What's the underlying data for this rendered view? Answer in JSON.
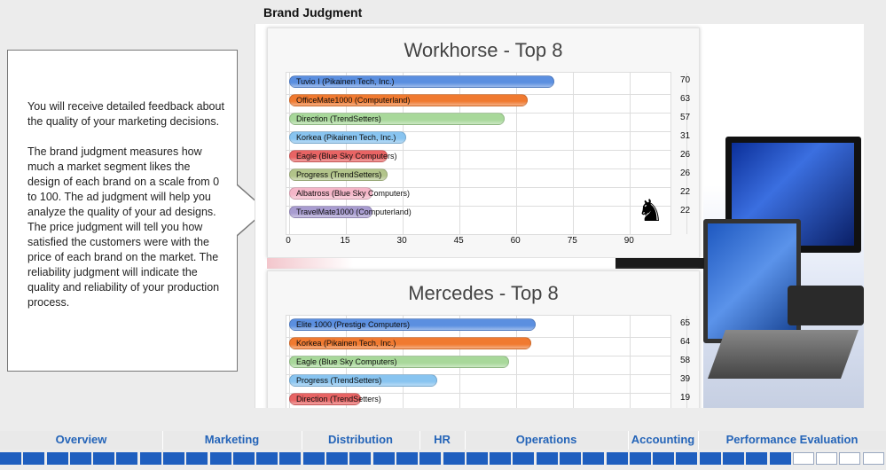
{
  "page": {
    "title": "Brand Judgment"
  },
  "info": {
    "paragraph1": "You will receive detailed feedback about the quality of your marketing decisions.",
    "paragraph2": "The brand judgment measures how much a market segment likes the design of each brand on a scale from 0 to 100. The ad judgment will help you analyze the quality of your ad designs. The price judgment will tell you how satisfied the customers were with the price of each brand on the market. The reliability judgment will indicate the quality and reliability of your production process."
  },
  "chart_data": [
    {
      "type": "bar",
      "orientation": "horizontal",
      "title": "Workhorse - Top 8",
      "categories": [
        "Tuvio I (Pikainen Tech, Inc.)",
        "OfficeMate1000 (Computerland)",
        "Direction (TrendSetters)",
        "Korkea (Pikainen Tech, Inc.)",
        "Eagle (Blue Sky Computers)",
        "Progress (TrendSetters)",
        "Albatross (Blue Sky Computers)",
        "TravelMate1000 (Computerland)"
      ],
      "values": [
        70,
        63,
        57,
        31,
        26,
        26,
        22,
        22
      ],
      "colors": [
        "#5b8fe0",
        "#f07a30",
        "#a8d89a",
        "#88c4f0",
        "#e86464",
        "#b2c48a",
        "#f4b6c8",
        "#a89cd0"
      ],
      "xlim": [
        0,
        100
      ],
      "xticks": [
        0,
        15,
        30,
        45,
        60,
        75,
        90
      ],
      "icon": "knight-icon"
    },
    {
      "type": "bar",
      "orientation": "horizontal",
      "title": "Mercedes - Top 8",
      "categories": [
        "Elite 1000 (Prestige Computers)",
        "Korkea (Pikainen Tech, Inc.)",
        "Eagle (Blue Sky Computers)",
        "Progress (TrendSetters)",
        "Direction (TrendSetters)"
      ],
      "values": [
        65,
        64,
        58,
        39,
        19
      ],
      "colors": [
        "#5b8fe0",
        "#f07a30",
        "#a8d89a",
        "#88c4f0",
        "#e86464"
      ],
      "xlim": [
        0,
        100
      ]
    }
  ],
  "nav": {
    "items": [
      "Overview",
      "Marketing",
      "Distribution",
      "HR",
      "Operations",
      "Accounting",
      "Performance Evaluation"
    ]
  },
  "progress": {
    "segments": 38,
    "filled": 34,
    "fill_color": "#1f5fbf"
  }
}
